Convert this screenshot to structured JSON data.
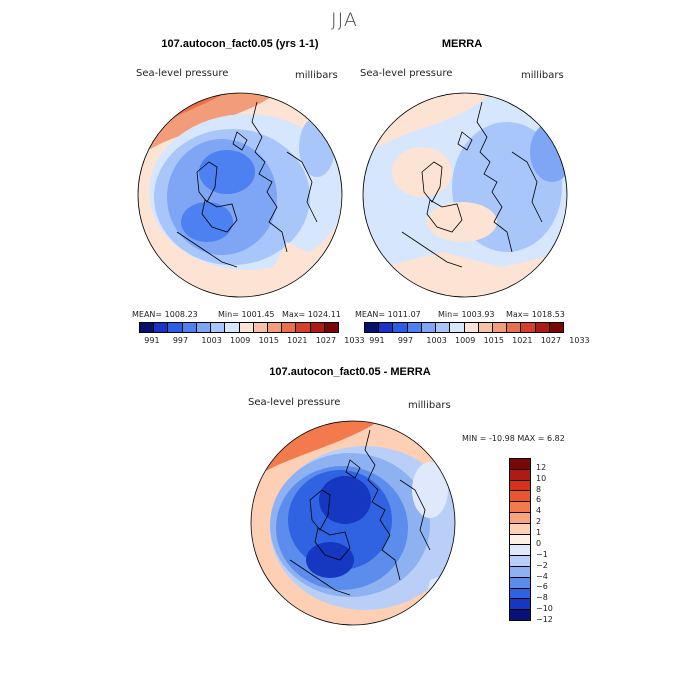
{
  "season": "JJA",
  "panels": [
    {
      "title": "107.autocon_fact0.05 (yrs 1-1)",
      "variable": "Sea-level pressure",
      "units": "millibars",
      "stats": {
        "mean": "MEAN= 1008.23",
        "min": "Min= 1001.45",
        "max": "Max= 1024.11"
      },
      "colorbar_labels": [
        "991",
        "997",
        "1003",
        "1009",
        "1015",
        "1021",
        "1027",
        "1033"
      ]
    },
    {
      "title": "MERRA",
      "variable": "Sea-level pressure",
      "units": "millibars",
      "stats": {
        "mean": "MEAN= 1011.07",
        "min": "Min= 1003.93",
        "max": "Max= 1018.53"
      },
      "colorbar_labels": [
        "991",
        "997",
        "1003",
        "1009",
        "1015",
        "1021",
        "1027",
        "1033"
      ]
    }
  ],
  "difference": {
    "title": "107.autocon_fact0.05 - MERRA",
    "variable": "Sea-level pressure",
    "units": "millibars",
    "minmax": "MIN = -10.98  MAX =    6.82",
    "colorbar_labels": [
      "12",
      "10",
      "8",
      "6",
      "4",
      "2",
      "1",
      "0",
      "-1",
      "-2",
      "-4",
      "-6",
      "-8",
      "-10",
      "-12"
    ]
  },
  "colors": {
    "abs_scale": [
      "#08106e",
      "#1a32c8",
      "#2a5de6",
      "#4d80f0",
      "#7ea6f5",
      "#a8c6fa",
      "#d6e6fc",
      "#fde3d4",
      "#f8c2a6",
      "#f29c7a",
      "#ea6f4c",
      "#d6402a",
      "#b01a14",
      "#7a0606"
    ],
    "diff_scale": [
      "#7a0606",
      "#b01a14",
      "#d6321a",
      "#ea5530",
      "#f27a4c",
      "#f8a47e",
      "#fdd0b6",
      "#fdf0e6",
      "#dfe9fb",
      "#b9cff7",
      "#8eb1f2",
      "#5c8ded",
      "#2f63e2",
      "#1637c2",
      "#081275"
    ],
    "land_outline": "#000000"
  }
}
